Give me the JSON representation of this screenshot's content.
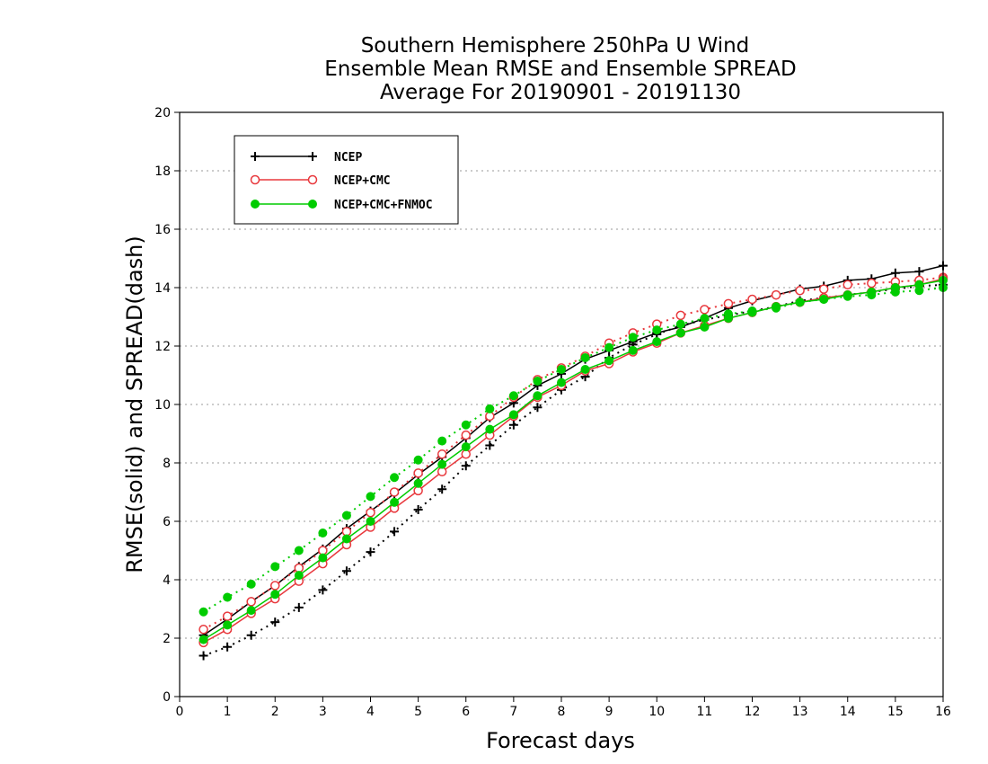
{
  "chart_data": {
    "type": "line",
    "title": [
      "Southern Hemisphere 250hPa U Wind",
      "Ensemble Mean RMSE and Ensemble SPREAD",
      "Average For 20190901 - 20191130"
    ],
    "xlabel": "Forecast days",
    "ylabel": "RMSE(solid) and SPREAD(dash)",
    "xlim": [
      0,
      16
    ],
    "ylim": [
      0,
      20
    ],
    "xticks": [
      0,
      1,
      2,
      3,
      4,
      5,
      6,
      7,
      8,
      9,
      10,
      11,
      12,
      13,
      14,
      15,
      16
    ],
    "yticks": [
      0,
      2,
      4,
      6,
      8,
      10,
      12,
      14,
      16,
      18,
      20
    ],
    "grid": "horizontal dotted",
    "legend_position": "top-left",
    "x": [
      0.5,
      1,
      1.5,
      2,
      2.5,
      3,
      3.5,
      4,
      4.5,
      5,
      5.5,
      6,
      6.5,
      7,
      7.5,
      8,
      8.5,
      9,
      9.5,
      10,
      10.5,
      11,
      11.5,
      12,
      12.5,
      13,
      13.5,
      14,
      14.5,
      15,
      15.5,
      16
    ],
    "series": [
      {
        "name": "NCEP",
        "color": "#000000",
        "marker": "plus",
        "rmse": [
          2.1,
          2.65,
          3.25,
          3.8,
          4.45,
          5.05,
          5.75,
          6.35,
          6.95,
          7.6,
          8.2,
          8.85,
          9.55,
          10.05,
          10.65,
          11.05,
          11.55,
          11.85,
          12.15,
          12.45,
          12.65,
          12.95,
          13.3,
          13.55,
          13.75,
          13.95,
          14.05,
          14.25,
          14.3,
          14.5,
          14.55,
          14.75
        ],
        "spread": [
          1.4,
          1.7,
          2.1,
          2.55,
          3.05,
          3.65,
          4.3,
          4.95,
          5.65,
          6.4,
          7.1,
          7.9,
          8.6,
          9.3,
          9.9,
          10.5,
          10.95,
          11.6,
          12.05,
          12.4,
          12.7,
          12.9,
          13.05,
          13.2,
          13.35,
          13.55,
          13.65,
          13.75,
          13.85,
          13.95,
          14.05,
          14.1
        ]
      },
      {
        "name": "NCEP+CMC",
        "color": "#e8383d",
        "marker": "open-circle",
        "rmse": [
          1.85,
          2.3,
          2.85,
          3.35,
          3.95,
          4.55,
          5.2,
          5.8,
          6.45,
          7.05,
          7.7,
          8.3,
          8.95,
          9.6,
          10.25,
          10.65,
          11.15,
          11.4,
          11.8,
          12.1,
          12.45,
          12.7,
          12.95,
          13.15,
          13.35,
          13.5,
          13.65,
          13.75,
          13.85,
          14.0,
          14.1,
          14.3
        ],
        "spread": [
          2.3,
          2.75,
          3.25,
          3.8,
          4.4,
          5.0,
          5.65,
          6.3,
          7.0,
          7.65,
          8.3,
          8.95,
          9.6,
          10.25,
          10.85,
          11.25,
          11.65,
          12.1,
          12.45,
          12.75,
          13.05,
          13.25,
          13.45,
          13.6,
          13.75,
          13.9,
          13.95,
          14.1,
          14.15,
          14.2,
          14.25,
          14.35
        ]
      },
      {
        "name": "NCEP+CMC+FNMOC",
        "color": "#00cc00",
        "marker": "filled-circle",
        "rmse": [
          1.95,
          2.45,
          2.95,
          3.5,
          4.15,
          4.75,
          5.4,
          6.0,
          6.65,
          7.3,
          7.95,
          8.55,
          9.15,
          9.65,
          10.3,
          10.75,
          11.2,
          11.5,
          11.85,
          12.15,
          12.45,
          12.65,
          12.95,
          13.15,
          13.35,
          13.5,
          13.6,
          13.75,
          13.85,
          14.0,
          14.1,
          14.25
        ],
        "spread": [
          2.9,
          3.4,
          3.85,
          4.45,
          5.0,
          5.6,
          6.2,
          6.85,
          7.5,
          8.1,
          8.75,
          9.3,
          9.85,
          10.3,
          10.8,
          11.2,
          11.6,
          11.95,
          12.3,
          12.55,
          12.75,
          12.95,
          13.1,
          13.2,
          13.3,
          13.5,
          13.6,
          13.7,
          13.75,
          13.85,
          13.9,
          14.0
        ]
      }
    ]
  }
}
